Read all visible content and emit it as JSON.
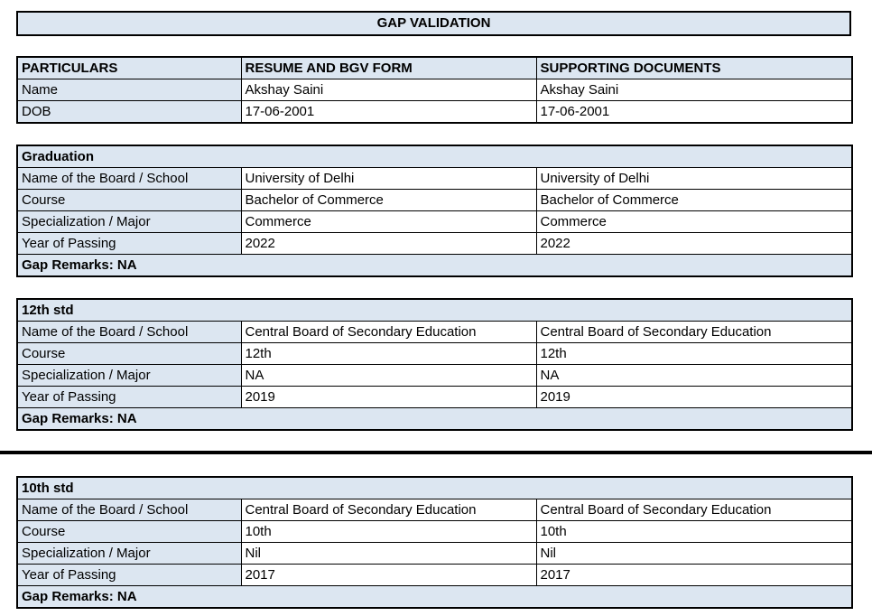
{
  "title": "GAP VALIDATION",
  "colors": {
    "header_fill": "#dce6f1",
    "border": "#000000",
    "text": "#000000",
    "background": "#ffffff"
  },
  "info_table": {
    "headers": [
      "PARTICULARS",
      "RESUME AND BGV FORM",
      "SUPPORTING DOCUMENTS"
    ],
    "rows": [
      {
        "label": "Name",
        "resume": "Akshay Saini",
        "supporting": "Akshay Saini"
      },
      {
        "label": "DOB",
        "resume": "17-06-2001",
        "supporting": "17-06-2001"
      }
    ]
  },
  "education_sections": [
    {
      "title": "Graduation",
      "rows": [
        {
          "label": "Name of the Board / School",
          "resume": "University of Delhi",
          "supporting": "University of Delhi"
        },
        {
          "label": "Course",
          "resume": "Bachelor of Commerce",
          "supporting": "Bachelor of Commerce"
        },
        {
          "label": "Specialization / Major",
          "resume": "Commerce",
          "supporting": "Commerce"
        },
        {
          "label": "Year of Passing",
          "resume": "2022",
          "supporting": "2022"
        }
      ],
      "gap_remarks": "Gap Remarks: NA"
    },
    {
      "title": "12th std",
      "rows": [
        {
          "label": "Name of the Board / School",
          "resume": "Central Board of Secondary Education",
          "supporting": "Central Board of Secondary Education"
        },
        {
          "label": "Course",
          "resume": "12th",
          "supporting": "12th"
        },
        {
          "label": "Specialization / Major",
          "resume": "NA",
          "supporting": "NA"
        },
        {
          "label": "Year of Passing",
          "resume": "2019",
          "supporting": "2019"
        }
      ],
      "gap_remarks": "Gap Remarks: NA"
    },
    {
      "title": "10th std",
      "rows": [
        {
          "label": "Name of the Board / School",
          "resume": "Central Board of Secondary Education",
          "supporting": "Central Board of Secondary Education"
        },
        {
          "label": "Course",
          "resume": "10th",
          "supporting": "10th"
        },
        {
          "label": "Specialization / Major",
          "resume": "Nil",
          "supporting": "Nil"
        },
        {
          "label": "Year of Passing",
          "resume": "2017",
          "supporting": "2017"
        }
      ],
      "gap_remarks": "Gap Remarks: NA"
    }
  ]
}
